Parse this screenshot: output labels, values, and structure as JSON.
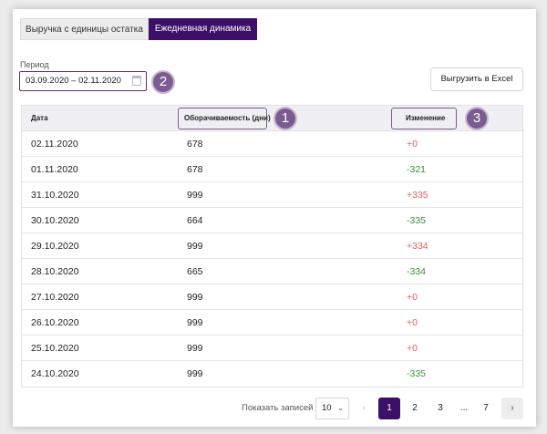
{
  "tabs": [
    {
      "label": "Выручка с единицы остатка"
    },
    {
      "label": "Ежедневная динамика"
    }
  ],
  "period": {
    "label": "Период",
    "value": "03.09.2020 – 02.11.2020"
  },
  "export_label": "Выгрузить в Excel",
  "badges": [
    "1",
    "2",
    "3"
  ],
  "table": {
    "headers": [
      "Дата",
      "Оборачиваемость (дни)",
      "Изменение"
    ],
    "rows": [
      {
        "date": "02.11.2020",
        "turnover": "678",
        "change": "+0"
      },
      {
        "date": "01.11.2020",
        "turnover": "678",
        "change": "-321"
      },
      {
        "date": "31.10.2020",
        "turnover": "999",
        "change": "+335"
      },
      {
        "date": "30.10.2020",
        "turnover": "664",
        "change": "-335"
      },
      {
        "date": "29.10.2020",
        "turnover": "999",
        "change": "+334"
      },
      {
        "date": "28.10.2020",
        "turnover": "665",
        "change": "-334"
      },
      {
        "date": "27.10.2020",
        "turnover": "999",
        "change": "+0"
      },
      {
        "date": "26.10.2020",
        "turnover": "999",
        "change": "+0"
      },
      {
        "date": "25.10.2020",
        "turnover": "999",
        "change": "+0"
      },
      {
        "date": "24.10.2020",
        "turnover": "999",
        "change": "-335"
      }
    ]
  },
  "pagination": {
    "show_label": "Показать записей",
    "page_size": "10",
    "prev": "‹",
    "pages": [
      "1",
      "2",
      "3",
      "...",
      "7"
    ],
    "next": "›"
  },
  "colors": {
    "accent": "#3c1067",
    "positive": "#e35b5b",
    "negative": "#3d8f3d",
    "badge": "#7a5d8e"
  }
}
